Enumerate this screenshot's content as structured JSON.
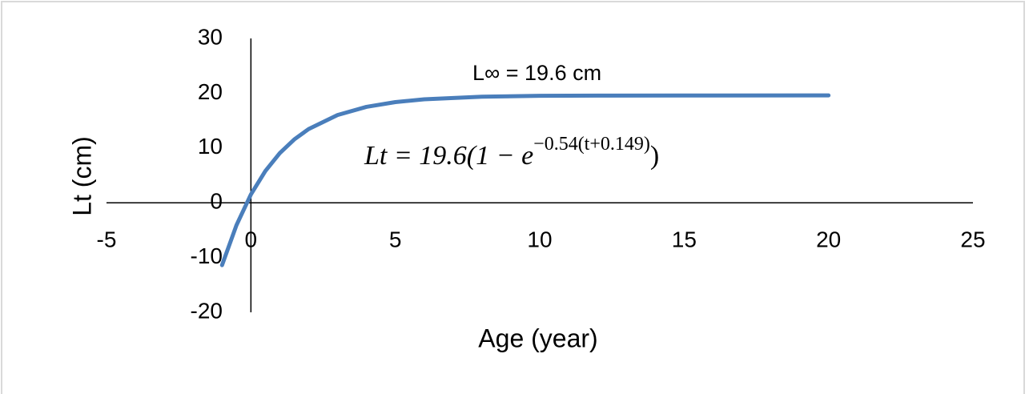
{
  "chart_data": {
    "type": "line",
    "x_label": "Age (year)",
    "y_label": "Lt (cm)",
    "annotation": "L∞ = 19.6 cm",
    "equation": {
      "base": "Lt = 19.6(1 − e",
      "exponent": "−0.54(t+0.149)",
      "close": ")"
    },
    "xlim": [
      -5,
      25
    ],
    "xticks": [
      -5,
      0,
      5,
      10,
      15,
      20,
      25
    ],
    "ylim": [
      -20,
      30
    ],
    "yticks": [
      -20,
      -10,
      0,
      10,
      20,
      30
    ],
    "x": [
      -1,
      -0.5,
      0,
      0.5,
      1,
      1.5,
      2,
      3,
      4,
      5,
      6,
      8,
      10,
      12,
      15,
      20
    ],
    "series": [
      {
        "color": "#4a7ebb",
        "values": [
          -11.39,
          -4.09,
          1.52,
          5.79,
          9.06,
          11.56,
          13.46,
          16.02,
          17.51,
          18.38,
          18.89,
          19.36,
          19.52,
          19.57,
          19.59,
          19.6
        ]
      }
    ]
  }
}
